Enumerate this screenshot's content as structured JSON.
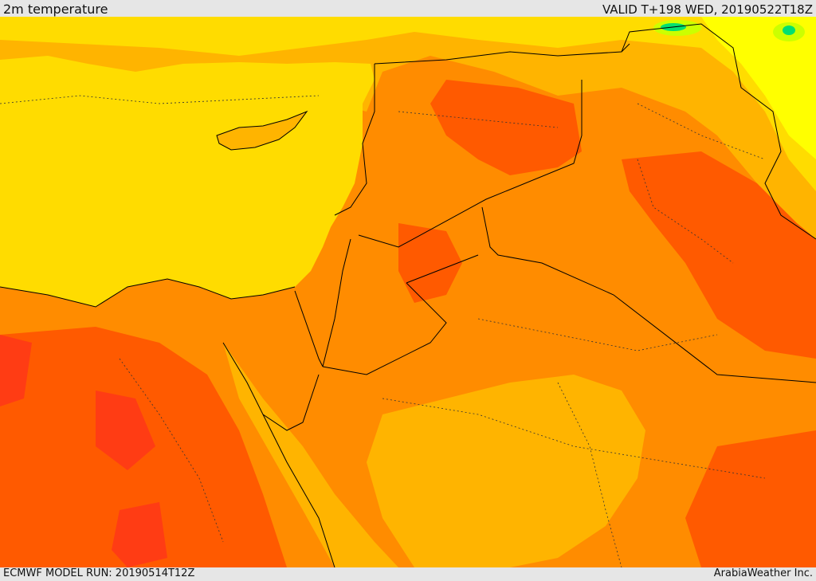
{
  "header": {
    "title": "2m temperature",
    "valid": "VALID T+198 WED, 20190522T18Z"
  },
  "footer": {
    "model_run": "ECMWF MODEL RUN: 20190514T12Z",
    "credit": "ArabiaWeather Inc."
  },
  "colors": {
    "sea": "#ffdc00",
    "warm": "#ffb400",
    "hot": "#ff8c00",
    "very_hot": "#ff5a00",
    "extreme": "#ff3c14",
    "mild": "#ffff00",
    "cool": "#ccff00",
    "cold": "#00e070",
    "border": "#000000"
  }
}
